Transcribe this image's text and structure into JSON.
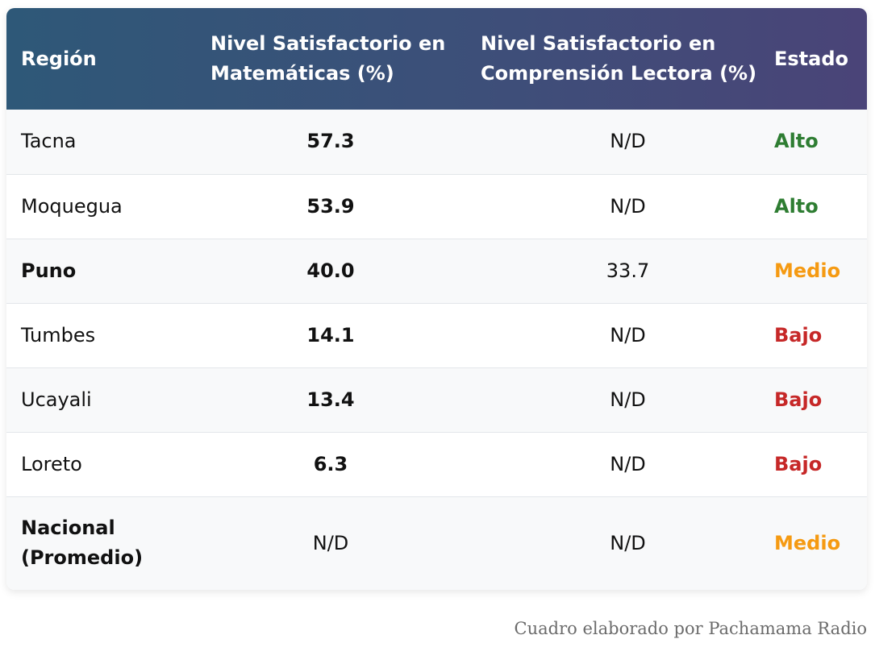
{
  "table": {
    "headers": {
      "region": "Región",
      "math": "Nivel Satisfactorio en Matemáticas (%)",
      "reading": "Nivel Satisfactorio en Comprensión Lectora (%)",
      "status": "Estado"
    },
    "rows": [
      {
        "region": "Tacna",
        "math": "57.3",
        "reading": "N/D",
        "status": "Alto",
        "status_level": "alto"
      },
      {
        "region": "Moquegua",
        "math": "53.9",
        "reading": "N/D",
        "status": "Alto",
        "status_level": "alto"
      },
      {
        "region": "Puno",
        "math": "40.0",
        "reading": "33.7",
        "status": "Medio",
        "status_level": "medio"
      },
      {
        "region": "Tumbes",
        "math": "14.1",
        "reading": "N/D",
        "status": "Bajo",
        "status_level": "bajo"
      },
      {
        "region": "Ucayali",
        "math": "13.4",
        "reading": "N/D",
        "status": "Bajo",
        "status_level": "bajo"
      },
      {
        "region": "Loreto",
        "math": "6.3",
        "reading": "N/D",
        "status": "Bajo",
        "status_level": "bajo"
      },
      {
        "region": "Nacional (Promedio)",
        "math": "N/D",
        "reading": "N/D",
        "status": "Medio",
        "status_level": "medio"
      }
    ]
  },
  "colors": {
    "header_start": "#2e5878",
    "header_end": "#4a4478",
    "alto": "#2e7d32",
    "medio": "#f59a12",
    "bajo": "#c62828"
  },
  "caption": "Cuadro elaborado por Pachamama Radio"
}
